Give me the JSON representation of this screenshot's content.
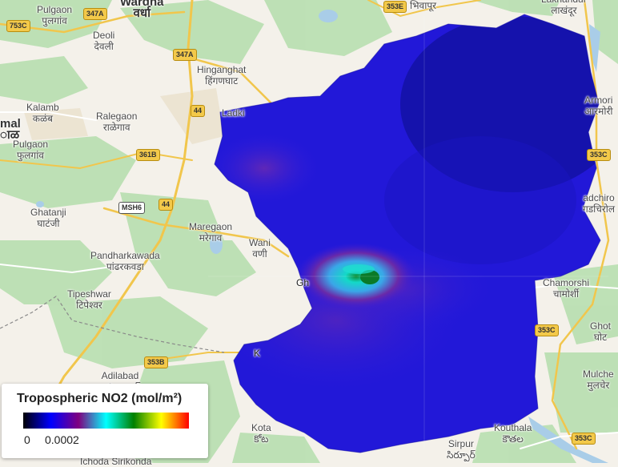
{
  "legend": {
    "title": "Tropospheric NO2 (mol/m²)",
    "min": "0",
    "max": "0.0002",
    "palette": [
      "#000004",
      "#0000ff",
      "#800080",
      "#00ffff",
      "#008000",
      "#ffff00",
      "#ff0000"
    ]
  },
  "places": [
    {
      "id": "pulgaon-top",
      "text": "Pulgaon\nपुलगांव"
    },
    {
      "id": "wardha",
      "text": "Wardha\nवर्धा"
    },
    {
      "id": "deoli",
      "text": "Deoli\nदेवली"
    },
    {
      "id": "bhivapur",
      "text": "भिवापूर"
    },
    {
      "id": "lakhandur",
      "text": "Lakhandur\nलाखंदूर"
    },
    {
      "id": "hinganghat",
      "text": "Hinganghat\nहिंगणघाट"
    },
    {
      "id": "kalamb",
      "text": "Kalamb\nकळंब"
    },
    {
      "id": "ralegaon",
      "text": "Ralegaon\nराळेगाव"
    },
    {
      "id": "ladki",
      "text": "Ladki"
    },
    {
      "id": "pulgaon-left",
      "text": "Pulgaon\nफुलगांव"
    },
    {
      "id": "mal",
      "text": "mal\nाळ"
    },
    {
      "id": "armori",
      "text": "Armori\nआरमोरी"
    },
    {
      "id": "ghatanji",
      "text": "Ghatanji\nघाटंजी"
    },
    {
      "id": "maregaon",
      "text": "Maregaon\nमरेगाव"
    },
    {
      "id": "wani",
      "text": "Wani\nवणी"
    },
    {
      "id": "gadchiroli",
      "text": "adchiro\nगडचिरोल"
    },
    {
      "id": "pandharkawada",
      "text": "Pandharkawada\nपांढरकवडा"
    },
    {
      "id": "tipeshwar",
      "text": "Tipeshwar\nटिपेश्वर"
    },
    {
      "id": "chamorshi",
      "text": "Chamorshi\nचामोर्शी"
    },
    {
      "id": "ghot",
      "text": "Ghot\nघोट"
    },
    {
      "id": "adilabad",
      "text": "Adilabad\nఆదిలాబాద్"
    },
    {
      "id": "mulchera",
      "text": "Mulche\nमुलचेर"
    },
    {
      "id": "kota",
      "text": "Kota\nకోట"
    },
    {
      "id": "kouthala",
      "text": "Kouthala\nకౌతల"
    },
    {
      "id": "sirpur",
      "text": "Sirpur\nసిర్పూర్"
    },
    {
      "id": "ichoda",
      "text": "Ichoda Sirikonda"
    },
    {
      "id": "gh",
      "text": "Gh"
    },
    {
      "id": "k",
      "text": "K"
    }
  ],
  "road_shields": [
    {
      "id": "r753c-tl",
      "text": "753C"
    },
    {
      "id": "r347a-top",
      "text": "347A"
    },
    {
      "id": "r353e",
      "text": "353E"
    },
    {
      "id": "r347a-mid",
      "text": "347A"
    },
    {
      "id": "r44-a",
      "text": "44"
    },
    {
      "id": "r361b",
      "text": "361B"
    },
    {
      "id": "r353c-r1",
      "text": "353C"
    },
    {
      "id": "msh6",
      "text": "MSH6"
    },
    {
      "id": "r44-b",
      "text": "44"
    },
    {
      "id": "r353c-r2",
      "text": "353C"
    },
    {
      "id": "r353b",
      "text": "353B"
    },
    {
      "id": "r353c-r3",
      "text": "353C"
    }
  ]
}
